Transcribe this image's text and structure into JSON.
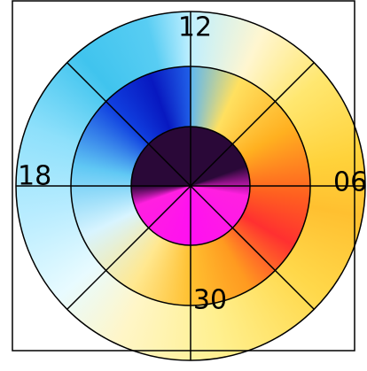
{
  "chart_data": {
    "type": "polar",
    "angle_labels": [
      "12",
      "06",
      "30",
      "18"
    ]
  }
}
